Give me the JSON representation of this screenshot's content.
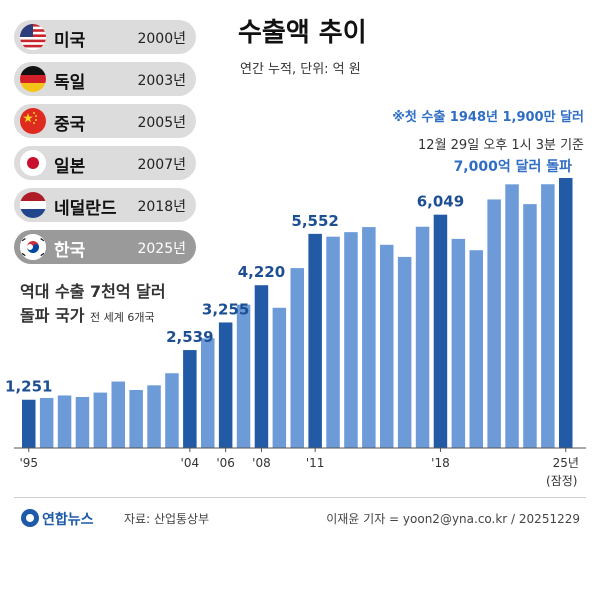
{
  "title": "수출액 추이",
  "subtitle": "연간 누적, 단위: 억 원",
  "countries": [
    {
      "name": "미국",
      "year": "2000년",
      "flag": "us-flag-icon"
    },
    {
      "name": "독일",
      "year": "2003년",
      "flag": "germany-flag-icon"
    },
    {
      "name": "중국",
      "year": "2005년",
      "flag": "china-flag-icon"
    },
    {
      "name": "일본",
      "year": "2007년",
      "flag": "japan-flag-icon"
    },
    {
      "name": "네덜란드",
      "year": "2018년",
      "flag": "netherlands-flag-icon"
    },
    {
      "name": "한국",
      "year": "2025년",
      "flag": "korea-flag-icon"
    }
  ],
  "record": {
    "line1": "역대 수출 7천억 달러",
    "line2": "돌파 국가",
    "line2_small": "전 세계 6개국"
  },
  "notes": {
    "first_export": "※첫 수출 1948년 1,900만 달러",
    "as_of": "12월 29일 오후 1시 3분 기준",
    "milestone": "7,000억 달러 돌파"
  },
  "footer": {
    "logo": "연합뉴스",
    "source": "자료: 산업통상부",
    "credit": "이재윤 기자 = yoon2@yna.co.kr / 20251229"
  },
  "colors": {
    "bar": "#6c9bd8",
    "highlight": "#225aa6",
    "label": "#1e4f93",
    "note": "#2f6ec4"
  },
  "chart_data": {
    "type": "bar",
    "title": "수출액 추이",
    "ylabel": "",
    "ylim": [
      0,
      7000
    ],
    "categories": [
      "1995",
      "1996",
      "1997",
      "1998",
      "1999",
      "2000",
      "2001",
      "2002",
      "2003",
      "2004",
      "2005",
      "2006",
      "2007",
      "2008",
      "2009",
      "2010",
      "2011",
      "2012",
      "2013",
      "2014",
      "2015",
      "2016",
      "2017",
      "2018",
      "2019",
      "2020",
      "2021",
      "2022",
      "2023",
      "2024",
      "2025"
    ],
    "values": [
      1251,
      1297,
      1362,
      1323,
      1437,
      1723,
      1504,
      1625,
      1938,
      2539,
      2844,
      3255,
      3715,
      4220,
      3635,
      4664,
      5552,
      5479,
      5596,
      5727,
      5268,
      4954,
      5737,
      6049,
      5422,
      5128,
      6444,
      6836,
      6322,
      6838,
      7000
    ],
    "highlight_indices": [
      0,
      9,
      11,
      13,
      16,
      23,
      30
    ],
    "data_labels": [
      {
        "index": 0,
        "text": "1,251"
      },
      {
        "index": 9,
        "text": "2,539"
      },
      {
        "index": 11,
        "text": "3,255"
      },
      {
        "index": 13,
        "text": "4,220"
      },
      {
        "index": 16,
        "text": "5,552"
      },
      {
        "index": 23,
        "text": "6,049"
      }
    ],
    "x_tick_labels": [
      {
        "index": 0,
        "text": "'95"
      },
      {
        "index": 9,
        "text": "'04"
      },
      {
        "index": 11,
        "text": "'06"
      },
      {
        "index": 13,
        "text": "'08"
      },
      {
        "index": 16,
        "text": "'11"
      },
      {
        "index": 23,
        "text": "'18"
      },
      {
        "index": 30,
        "text": "25년",
        "sub": "(잠정)"
      }
    ]
  }
}
